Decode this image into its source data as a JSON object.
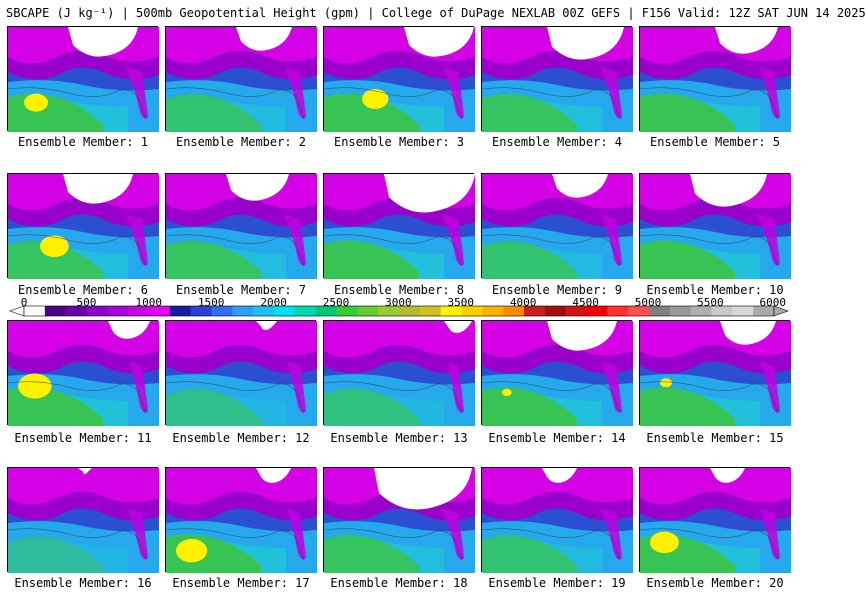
{
  "header": {
    "title": "SBCAPE (J kg⁻¹) | 500mb Geopotential Height (gpm) | College of DuPage NEXLAB 00Z GEFS | F156 Valid: 12Z SAT JUN 14 2025"
  },
  "members": [
    {
      "label": "Ensemble Member: 1"
    },
    {
      "label": "Ensemble Member: 2"
    },
    {
      "label": "Ensemble Member: 3"
    },
    {
      "label": "Ensemble Member: 4"
    },
    {
      "label": "Ensemble Member: 5"
    },
    {
      "label": "Ensemble Member: 6"
    },
    {
      "label": "Ensemble Member: 7"
    },
    {
      "label": "Ensemble Member: 8"
    },
    {
      "label": "Ensemble Member: 9"
    },
    {
      "label": "Ensemble Member: 10"
    },
    {
      "label": "Ensemble Member: 11"
    },
    {
      "label": "Ensemble Member: 12"
    },
    {
      "label": "Ensemble Member: 13"
    },
    {
      "label": "Ensemble Member: 14"
    },
    {
      "label": "Ensemble Member: 15"
    },
    {
      "label": "Ensemble Member: 16"
    },
    {
      "label": "Ensemble Member: 17"
    },
    {
      "label": "Ensemble Member: 18"
    },
    {
      "label": "Ensemble Member: 19"
    },
    {
      "label": "Ensemble Member: 20"
    }
  ],
  "colorbar": {
    "ticks": [
      "0",
      "500",
      "1000",
      "1500",
      "2000",
      "2500",
      "3000",
      "3500",
      "4000",
      "4500",
      "5000",
      "5500",
      "6000"
    ],
    "colors": [
      "#ffffff",
      "#4b0082",
      "#6a00a8",
      "#8a00c8",
      "#a800dc",
      "#c800e6",
      "#e100ef",
      "#1a1aa0",
      "#2e3fd8",
      "#2f6ff0",
      "#2f9ef5",
      "#1fc0f5",
      "#00e0f0",
      "#00d8b0",
      "#00c878",
      "#32cd32",
      "#66cc33",
      "#99cc33",
      "#b8b830",
      "#d0c020",
      "#fff200",
      "#ffd000",
      "#ffb000",
      "#ff8c00",
      "#c81e1e",
      "#a01010",
      "#d41414",
      "#f00000",
      "#ff3030",
      "#ff5050",
      "#808080",
      "#999999",
      "#b0b0b0",
      "#c8c8c8",
      "#d8d8d8",
      "#aaaaaa"
    ]
  }
}
